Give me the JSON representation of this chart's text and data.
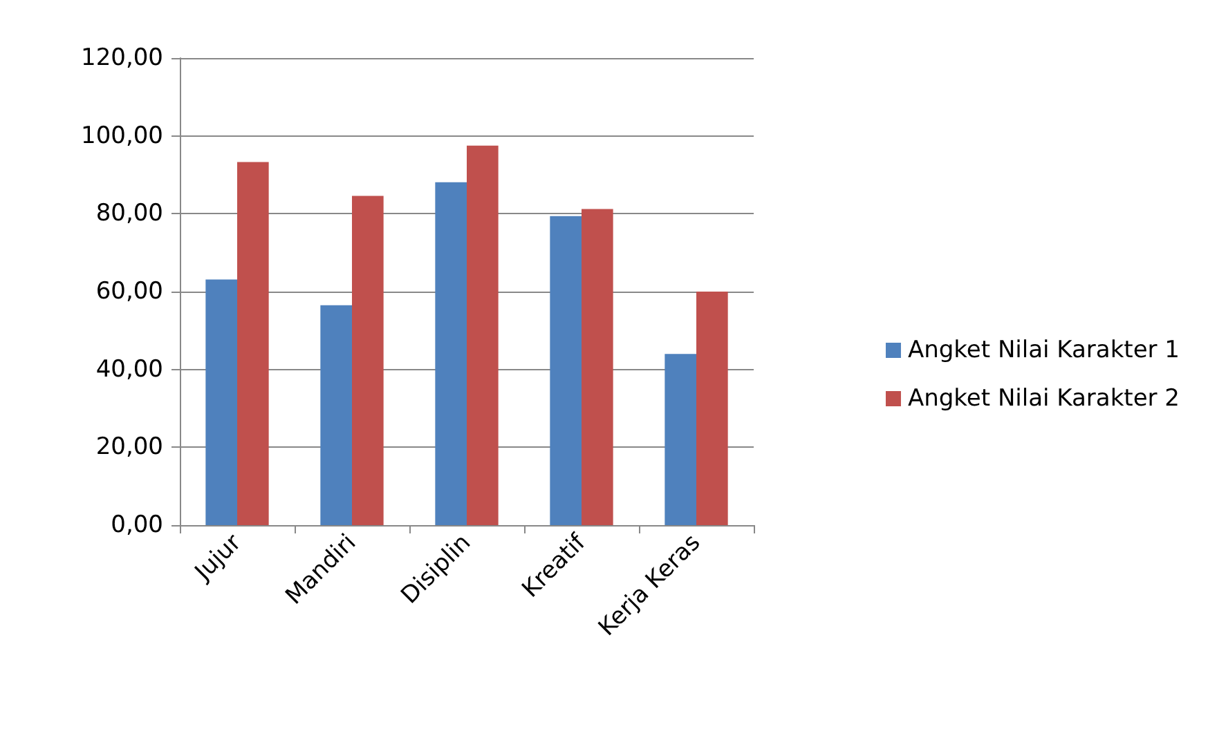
{
  "chart_data": {
    "type": "bar",
    "categories": [
      "Jujur",
      "Mandiri",
      "Disiplin",
      "Kreatif",
      "Kerja Keras"
    ],
    "series": [
      {
        "name": "Angket Nilai Karakter 1",
        "color": "#4f81bd",
        "values": [
          63.1,
          56.5,
          88.1,
          79.4,
          44.0
        ]
      },
      {
        "name": "Angket Nilai Karakter 2",
        "color": "#c0504d",
        "values": [
          93.3,
          84.6,
          97.5,
          81.2,
          60.0
        ]
      }
    ],
    "ylim": [
      0,
      120
    ],
    "yticks": [
      {
        "value": 0,
        "label": "0,00"
      },
      {
        "value": 20,
        "label": "20,00"
      },
      {
        "value": 40,
        "label": "40,00"
      },
      {
        "value": 60,
        "label": "60,00"
      },
      {
        "value": 80,
        "label": "80,00"
      },
      {
        "value": 100,
        "label": "100,00"
      },
      {
        "value": 120,
        "label": "120,00"
      }
    ],
    "grid": "y",
    "legend": "right"
  }
}
